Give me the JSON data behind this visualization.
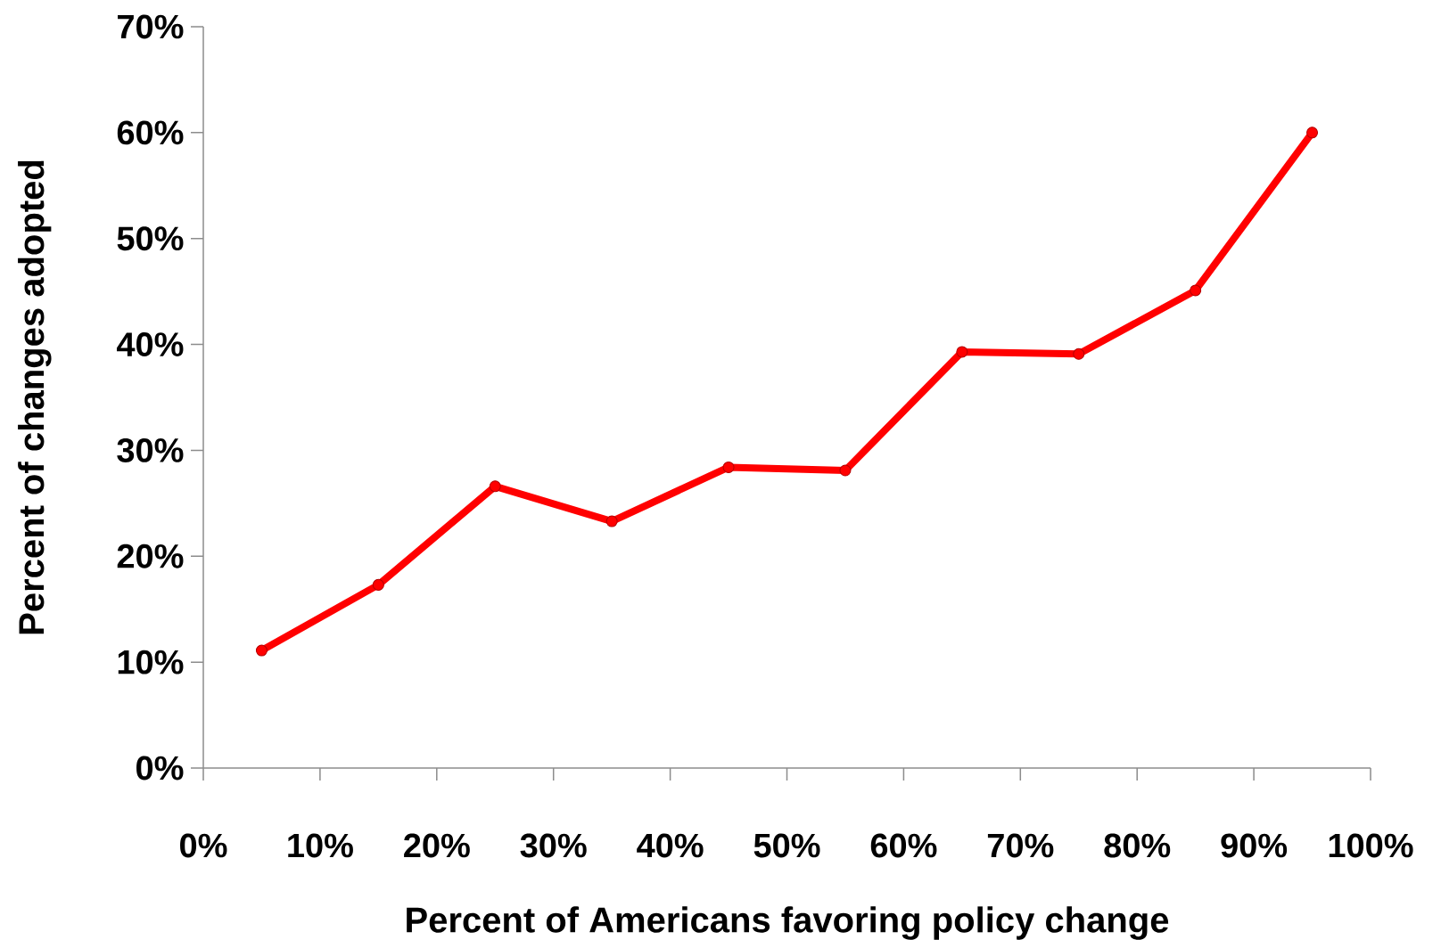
{
  "chart_data": {
    "type": "line",
    "xlabel": "Percent of Americans favoring policy change",
    "ylabel": "Percent of changes adopted",
    "x": [
      5,
      15,
      25,
      35,
      45,
      55,
      65,
      75,
      85,
      95
    ],
    "series": [
      {
        "color": "#ff0000",
        "values": [
          11.1,
          17.3,
          26.6,
          23.3,
          28.4,
          28.1,
          39.3,
          39.1,
          45.1,
          60.0
        ]
      }
    ],
    "marker": "circle",
    "line_style": "solid",
    "grid": false,
    "xlim": [
      0,
      100
    ],
    "xticks": [
      {
        "value": 0,
        "label": "0%"
      },
      {
        "value": 10,
        "label": "10%"
      },
      {
        "value": 20,
        "label": "20%"
      },
      {
        "value": 30,
        "label": "30%"
      },
      {
        "value": 40,
        "label": "40%"
      },
      {
        "value": 50,
        "label": "50%"
      },
      {
        "value": 60,
        "label": "60%"
      },
      {
        "value": 70,
        "label": "70%"
      },
      {
        "value": 80,
        "label": "80%"
      },
      {
        "value": 90,
        "label": "90%"
      },
      {
        "value": 100,
        "label": "100%"
      }
    ],
    "ylim": [
      0,
      70
    ],
    "yticks": [
      {
        "value": 0,
        "label": "0%"
      },
      {
        "value": 10,
        "label": "10%"
      },
      {
        "value": 20,
        "label": "20%"
      },
      {
        "value": 30,
        "label": "30%"
      },
      {
        "value": 40,
        "label": "40%"
      },
      {
        "value": 50,
        "label": "50%"
      },
      {
        "value": 60,
        "label": "60%"
      },
      {
        "value": 70,
        "label": "70%"
      }
    ]
  }
}
